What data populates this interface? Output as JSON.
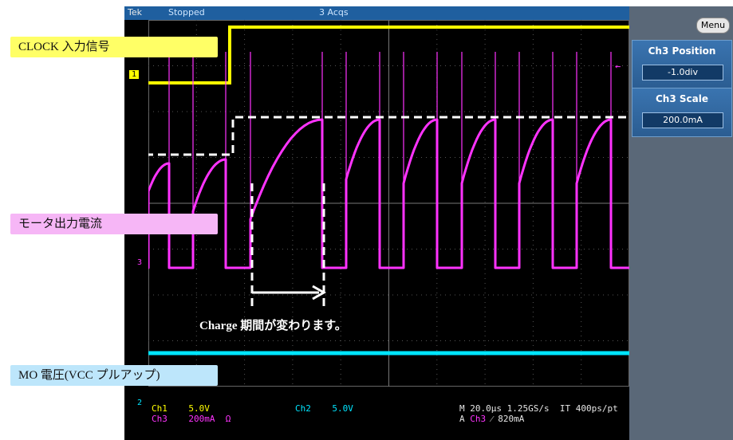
{
  "scope": {
    "brand": "Tek",
    "status": "Stopped",
    "acquisitions": "3 Acqs",
    "menu_label": "Menu",
    "softkeys": [
      {
        "title": "Ch3 Position",
        "value": "-1.0div"
      },
      {
        "title": "Ch3 Scale",
        "value": "200.0mA"
      }
    ],
    "readout": {
      "ch1_name": "Ch1",
      "ch1_scale": "5.0V",
      "ch3_name": "Ch3",
      "ch3_scale": "200mA",
      "ch3_unit": "Ω",
      "ch2_name": "Ch2",
      "ch2_scale": "5.0V",
      "timebase": "M 20.0µs 1.25GS/s",
      "interp": "IT 400ps/pt",
      "trigger_prefix": "A",
      "trigger_ch": "Ch3",
      "trigger_slope": "⁄",
      "trigger_level": "820mA"
    },
    "markers": {
      "ch1": "1",
      "ch3": "3",
      "ch2": "2"
    },
    "colors": {
      "ch1": "#ffff00",
      "ch2": "#00e5ff",
      "ch3": "#ff33ff",
      "topbar": "#1f5f9f",
      "sidepanel": "#5a6878"
    }
  },
  "annotations": {
    "clock_label": "CLOCK 入力信号",
    "motor_label": "モータ出力電流",
    "mo_label": "MO 電圧(VCC プルアップ)",
    "charge_label": "Charge 期間が変わります。"
  }
}
